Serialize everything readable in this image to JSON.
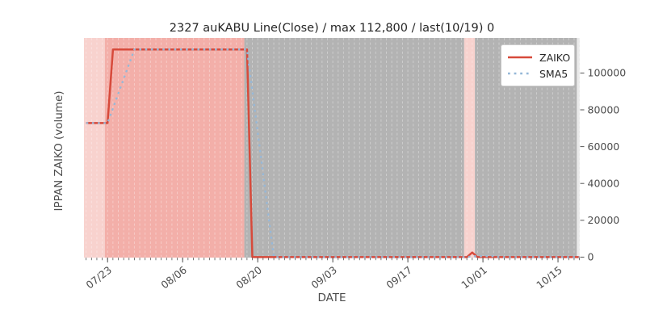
{
  "chart_data": {
    "type": "line",
    "title": "2327 auKABU Line(Close) / max 112,800 / last(10/19) 0",
    "xlabel": "DATE",
    "ylabel": "IPPAN ZAIKO (volume)",
    "max_value": 112800,
    "last_point": {
      "date": "10/19",
      "value": 0
    },
    "x_range": [
      "07/19",
      "10/19"
    ],
    "ylim": [
      0,
      119000
    ],
    "x_ticks": [
      "07/23",
      "08/06",
      "08/20",
      "09/03",
      "09/17",
      "10/01",
      "10/15"
    ],
    "y_ticks": [
      0,
      20000,
      40000,
      60000,
      80000,
      100000
    ],
    "grid": "daily vertical white dashed",
    "legend_position": "upper right",
    "series": [
      {
        "name": "ZAIKO",
        "style": "solid",
        "color": "#d74a3b",
        "points": [
          [
            "07/19",
            72800
          ],
          [
            "07/23",
            72800
          ],
          [
            "07/24",
            112800
          ],
          [
            "08/18",
            112800
          ],
          [
            "08/19",
            0
          ],
          [
            "09/28",
            0
          ],
          [
            "09/29",
            2500
          ],
          [
            "09/30",
            0
          ],
          [
            "10/19",
            0
          ]
        ]
      },
      {
        "name": "SMA5",
        "style": "dotted",
        "color": "#96b8d8",
        "points": [
          [
            "07/19",
            72800
          ],
          [
            "07/23",
            72800
          ],
          [
            "07/28",
            112800
          ],
          [
            "08/18",
            112800
          ],
          [
            "08/23",
            0
          ],
          [
            "09/28",
            0
          ],
          [
            "09/29",
            500
          ],
          [
            "10/03",
            500
          ],
          [
            "10/04",
            0
          ],
          [
            "10/19",
            0
          ]
        ]
      }
    ],
    "bands": [
      {
        "start": "07/19",
        "end": "07/22",
        "color": "light_pink"
      },
      {
        "start": "07/23",
        "end": "08/17",
        "color": "pink"
      },
      {
        "start": "08/18",
        "end": "09/27",
        "color": "gray"
      },
      {
        "start": "09/28",
        "end": "09/29",
        "color": "light_pink"
      },
      {
        "start": "09/30",
        "end": "10/18",
        "color": "gray"
      }
    ],
    "colors": {
      "pink": "#f3afa9",
      "light_pink": "#f8d2ce",
      "gray": "#b3b3b3",
      "plot_bg": "#eaeaea",
      "tick_text": "#4d4d4d",
      "zaiko_line": "#d74a3b",
      "sma5_line": "#96b8d8"
    }
  }
}
